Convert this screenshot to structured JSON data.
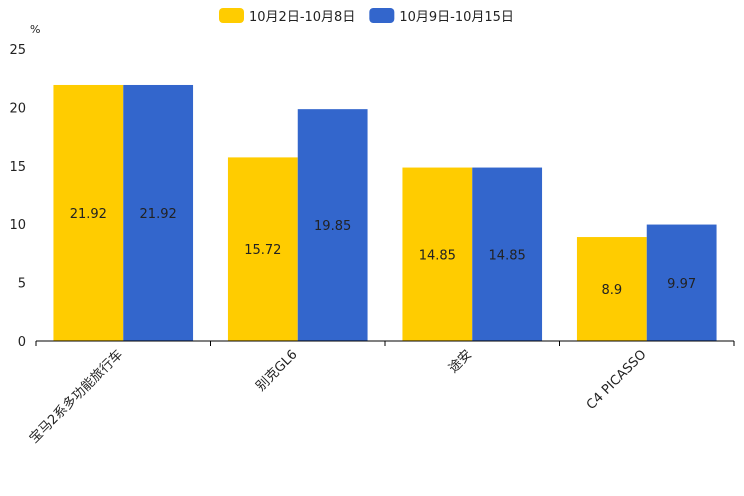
{
  "chart_data": {
    "type": "bar",
    "title": "",
    "xlabel": "",
    "ylabel": "%",
    "ylim": [
      0,
      25
    ],
    "yticks": [
      0,
      5,
      10,
      15,
      20,
      25
    ],
    "categories": [
      "宝马2系多功能旅行车",
      "别克GL6",
      "途安",
      "C4 PICASSO"
    ],
    "series": [
      {
        "name": "10月2日-10月8日",
        "color": "#ffcc00",
        "values": [
          21.92,
          15.72,
          14.85,
          8.9
        ],
        "labels": [
          "21.92",
          "15.72",
          "14.85",
          "8.9"
        ]
      },
      {
        "name": "10月9日-10月15日",
        "color": "#3366cc",
        "values": [
          21.92,
          19.85,
          14.85,
          9.97
        ],
        "labels": [
          "21.92",
          "19.85",
          "14.85",
          "9.97"
        ]
      }
    ],
    "legend_position": "top-center",
    "grid": false
  }
}
